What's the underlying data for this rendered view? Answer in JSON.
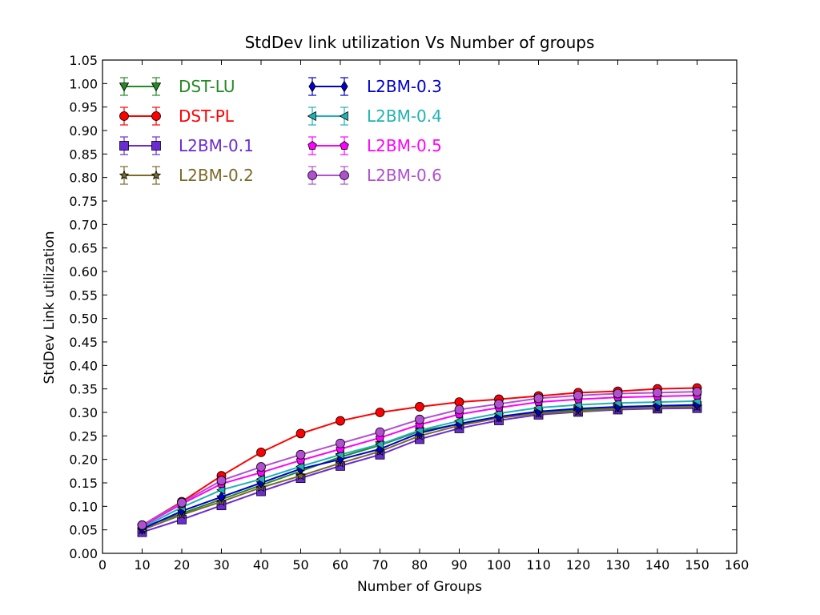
{
  "chart_data": {
    "type": "line",
    "title": "StdDev link utilization Vs Number of groups",
    "xlabel": "Number of Groups",
    "ylabel": "StdDev Link utilization",
    "xlim": [
      0,
      160
    ],
    "ylim": [
      0,
      1.05
    ],
    "xticks": [
      "0",
      "10",
      "20",
      "30",
      "40",
      "50",
      "60",
      "70",
      "80",
      "90",
      "100",
      "110",
      "120",
      "130",
      "140",
      "150",
      "160"
    ],
    "yticks": [
      "0.00",
      "0.05",
      "0.10",
      "0.15",
      "0.20",
      "0.25",
      "0.30",
      "0.35",
      "0.40",
      "0.45",
      "0.50",
      "0.55",
      "0.60",
      "0.65",
      "0.70",
      "0.75",
      "0.80",
      "0.85",
      "0.90",
      "0.95",
      "1.00",
      "1.05"
    ],
    "grid": false,
    "legend_position": "top-left, two columns",
    "x": [
      10,
      20,
      30,
      40,
      50,
      60,
      70,
      80,
      90,
      100,
      110,
      120,
      130,
      140,
      150
    ],
    "series": [
      {
        "name": "DST-LU",
        "color": "#228b22",
        "marker": "triangle-down",
        "values": [
          0.055,
          0.085,
          0.115,
          0.145,
          0.175,
          0.205,
          0.23,
          0.26,
          0.275,
          0.29,
          0.3,
          0.305,
          0.31,
          0.31,
          0.315
        ]
      },
      {
        "name": "DST-PL",
        "color": "#ff0000",
        "marker": "circle",
        "values": [
          0.06,
          0.11,
          0.165,
          0.215,
          0.255,
          0.282,
          0.3,
          0.312,
          0.322,
          0.328,
          0.335,
          0.342,
          0.345,
          0.35,
          0.352
        ]
      },
      {
        "name": "L2BM-0.1",
        "color": "#6a2bd4",
        "marker": "square",
        "values": [
          0.045,
          0.072,
          0.102,
          0.132,
          0.16,
          0.186,
          0.21,
          0.243,
          0.266,
          0.283,
          0.295,
          0.301,
          0.306,
          0.308,
          0.309
        ]
      },
      {
        "name": "L2BM-0.2",
        "color": "#7b6a2a",
        "marker": "star",
        "values": [
          0.05,
          0.082,
          0.11,
          0.14,
          0.165,
          0.192,
          0.217,
          0.25,
          0.272,
          0.288,
          0.298,
          0.302,
          0.308,
          0.31,
          0.312
        ]
      },
      {
        "name": "L2BM-0.3",
        "color": "#0000cd",
        "marker": "diamond",
        "values": [
          0.052,
          0.09,
          0.12,
          0.15,
          0.18,
          0.2,
          0.222,
          0.256,
          0.276,
          0.291,
          0.302,
          0.308,
          0.312,
          0.314,
          0.316
        ]
      },
      {
        "name": "L2BM-0.4",
        "color": "#20b2b2",
        "marker": "triangle-left",
        "values": [
          0.055,
          0.098,
          0.135,
          0.158,
          0.185,
          0.21,
          0.232,
          0.262,
          0.282,
          0.298,
          0.31,
          0.316,
          0.32,
          0.322,
          0.324
        ]
      },
      {
        "name": "L2BM-0.5",
        "color": "#ff00ff",
        "marker": "pentagon",
        "values": [
          0.058,
          0.105,
          0.148,
          0.172,
          0.198,
          0.222,
          0.246,
          0.274,
          0.296,
          0.31,
          0.322,
          0.328,
          0.332,
          0.334,
          0.336
        ]
      },
      {
        "name": "L2BM-0.6",
        "color": "#b04fd0",
        "marker": "circle",
        "values": [
          0.06,
          0.108,
          0.155,
          0.184,
          0.21,
          0.234,
          0.258,
          0.285,
          0.306,
          0.318,
          0.33,
          0.336,
          0.34,
          0.342,
          0.344
        ]
      }
    ]
  }
}
